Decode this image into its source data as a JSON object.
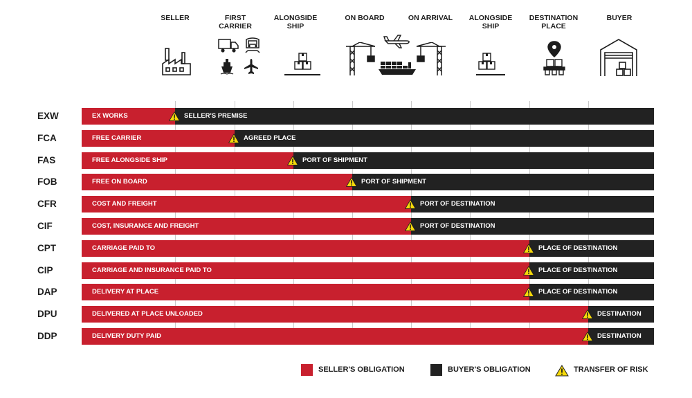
{
  "stages": [
    "SELLER",
    "FIRST\nCARRIER",
    "ALONGSIDE\nSHIP",
    "ON BOARD",
    "ON ARRIVAL",
    "ALONGSIDE\nSHIP",
    "DESTINATION\nPLACE",
    "BUYER"
  ],
  "terms": [
    {
      "code": "EXW",
      "name": "EX WORKS",
      "point": "SELLER'S PREMISE",
      "risk_stage": 1
    },
    {
      "code": "FCA",
      "name": "FREE CARRIER",
      "point": "AGREED PLACE",
      "risk_stage": 2
    },
    {
      "code": "FAS",
      "name": "FREE ALONGSIDE SHIP",
      "point": "PORT OF SHIPMENT",
      "risk_stage": 3
    },
    {
      "code": "FOB",
      "name": "FREE ON BOARD",
      "point": "PORT OF SHIPMENT",
      "risk_stage": 4
    },
    {
      "code": "CFR",
      "name": "COST AND FREIGHT",
      "point": "PORT OF DESTINATION",
      "risk_stage": 5
    },
    {
      "code": "CIF",
      "name": "COST, INSURANCE AND FREIGHT",
      "point": "PORT OF DESTINATION",
      "risk_stage": 5
    },
    {
      "code": "CPT",
      "name": "CARRIAGE PAID TO",
      "point": "PLACE OF DESTINATION",
      "risk_stage": 7
    },
    {
      "code": "CIP",
      "name": "CARRIAGE AND INSURANCE PAID TO",
      "point": "PLACE OF DESTINATION",
      "risk_stage": 7
    },
    {
      "code": "DAP",
      "name": "DELIVERY AT PLACE",
      "point": "PLACE OF DESTINATION",
      "risk_stage": 7
    },
    {
      "code": "DPU",
      "name": "DELIVERED AT PLACE UNLOADED",
      "point": "DESTINATION",
      "risk_stage": 8
    },
    {
      "code": "DDP",
      "name": "DELIVERY DUTY PAID",
      "point": "DESTINATION",
      "risk_stage": 8
    }
  ],
  "legend": {
    "seller": "SELLER'S OBLIGATION",
    "buyer": "BUYER'S OBLIGATION",
    "risk": "TRANSFER OF RISK"
  },
  "colors": {
    "seller": "#c8202e",
    "buyer": "#222222",
    "risk": "#f5d90a"
  },
  "icons": [
    "factory-icon",
    "truck-icon",
    "train-icon",
    "ship-icon",
    "airplane-icon",
    "boxes-icon",
    "crane-icon",
    "cargo-ship-icon",
    "location-pin-icon",
    "warehouse-icon",
    "warning-icon"
  ]
}
